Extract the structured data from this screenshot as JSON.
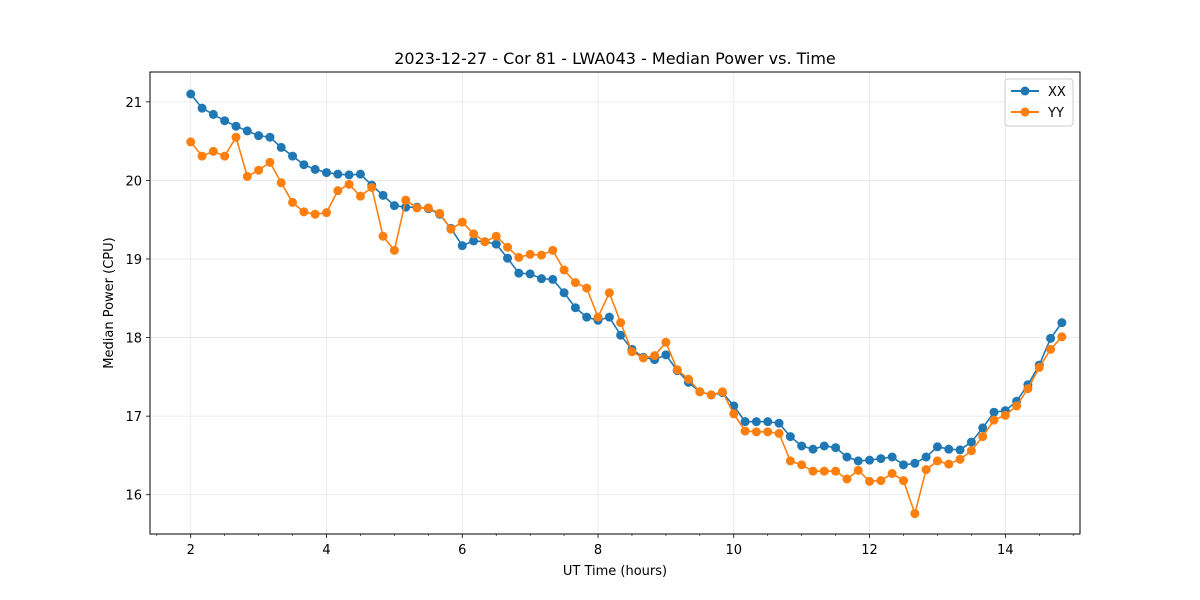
{
  "chart_data": {
    "type": "line",
    "title": "2023-12-27 - Cor 81 - LWA043 - Median Power vs. Time",
    "xlabel": "UT Time (hours)",
    "ylabel": "Median Power (CPU)",
    "xlim": [
      1.4,
      15.1
    ],
    "ylim": [
      15.5,
      21.38
    ],
    "xticks": [
      2,
      4,
      6,
      8,
      10,
      12,
      14
    ],
    "xtick_labels": [
      "2",
      "4",
      "6",
      "8",
      "10",
      "12",
      "14"
    ],
    "yticks": [
      16,
      17,
      18,
      19,
      20,
      21
    ],
    "ytick_labels": [
      "16",
      "17",
      "18",
      "19",
      "20",
      "21"
    ],
    "grid": true,
    "legend_position": "top-right",
    "x": [
      2.0,
      2.167,
      2.333,
      2.5,
      2.667,
      2.833,
      3.0,
      3.167,
      3.333,
      3.5,
      3.667,
      3.833,
      4.0,
      4.167,
      4.333,
      4.5,
      4.667,
      4.833,
      5.0,
      5.167,
      5.333,
      5.5,
      5.667,
      5.833,
      6.0,
      6.167,
      6.333,
      6.5,
      6.667,
      6.833,
      7.0,
      7.167,
      7.333,
      7.5,
      7.667,
      7.833,
      8.0,
      8.167,
      8.333,
      8.5,
      8.667,
      8.833,
      9.0,
      9.167,
      9.333,
      9.5,
      9.667,
      9.833,
      10.0,
      10.167,
      10.333,
      10.5,
      10.667,
      10.833,
      11.0,
      11.167,
      11.333,
      11.5,
      11.667,
      11.833,
      12.0,
      12.167,
      12.333,
      12.5,
      12.667,
      12.833,
      13.0,
      13.167,
      13.333,
      13.5,
      13.667,
      13.833,
      14.0,
      14.167,
      14.333,
      14.5,
      14.667,
      14.833
    ],
    "series": [
      {
        "name": "XX",
        "color": "#1f77b4",
        "values": [
          21.1,
          20.92,
          20.84,
          20.76,
          20.69,
          20.63,
          20.57,
          20.55,
          20.42,
          20.31,
          20.2,
          20.14,
          20.1,
          20.08,
          20.07,
          20.08,
          19.94,
          19.81,
          19.68,
          19.66,
          19.66,
          19.64,
          19.57,
          19.39,
          19.17,
          19.23,
          19.22,
          19.19,
          19.01,
          18.82,
          18.81,
          18.75,
          18.74,
          18.57,
          18.38,
          18.26,
          18.22,
          18.26,
          18.03,
          17.85,
          17.75,
          17.72,
          17.78,
          17.58,
          17.43,
          17.31,
          17.27,
          17.3,
          17.13,
          16.93,
          16.93,
          16.93,
          16.91,
          16.74,
          16.62,
          16.58,
          16.62,
          16.6,
          16.48,
          16.43,
          16.44,
          16.46,
          16.48,
          16.38,
          16.4,
          16.48,
          16.61,
          16.58,
          16.57,
          16.67,
          16.85,
          17.05,
          17.07,
          17.19,
          17.4,
          17.65,
          17.99,
          18.19
        ]
      },
      {
        "name": "YY",
        "color": "#ff7f0e",
        "values": [
          20.49,
          20.31,
          20.37,
          20.31,
          20.55,
          20.05,
          20.13,
          20.23,
          19.97,
          19.72,
          19.6,
          19.57,
          19.59,
          19.87,
          19.95,
          19.8,
          19.91,
          19.29,
          19.11,
          19.75,
          19.65,
          19.65,
          19.58,
          19.38,
          19.47,
          19.32,
          19.22,
          19.29,
          19.15,
          19.02,
          19.06,
          19.05,
          19.11,
          18.86,
          18.7,
          18.63,
          18.26,
          18.57,
          18.19,
          17.82,
          17.74,
          17.77,
          17.94,
          17.59,
          17.47,
          17.31,
          17.27,
          17.31,
          17.03,
          16.81,
          16.8,
          16.8,
          16.78,
          16.43,
          16.38,
          16.3,
          16.3,
          16.3,
          16.2,
          16.31,
          16.17,
          16.18,
          16.27,
          16.18,
          15.76,
          16.32,
          16.43,
          16.39,
          16.45,
          16.56,
          16.74,
          16.95,
          17.01,
          17.13,
          17.35,
          17.62,
          17.85,
          18.01
        ]
      }
    ]
  }
}
